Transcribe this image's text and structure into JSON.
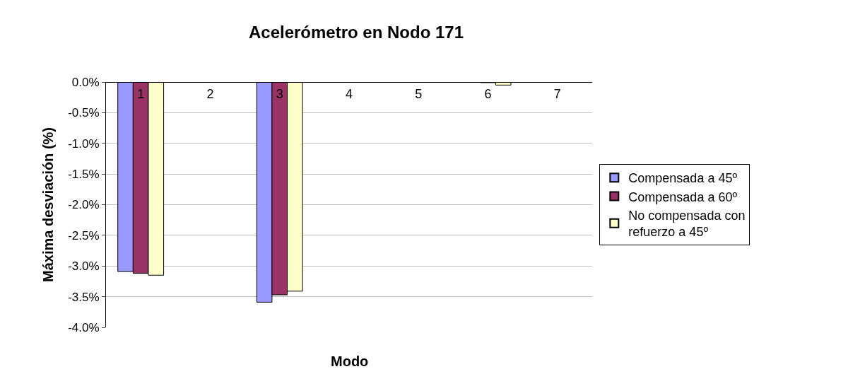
{
  "chart_data": {
    "type": "bar",
    "title": "Acelerómetro en Nodo 171",
    "xlabel": "Modo",
    "ylabel": "Máxima desviación (%)",
    "categories": [
      "1",
      "2",
      "3",
      "4",
      "5",
      "6",
      "7"
    ],
    "series": [
      {
        "name": "Compensada a 45º",
        "color": "#9999ff",
        "values": [
          -3.09,
          0,
          -3.59,
          0,
          0,
          0,
          0
        ]
      },
      {
        "name": "Compensada a 60º",
        "color": "#993366",
        "values": [
          -3.12,
          0,
          -3.47,
          0,
          0,
          -0.01,
          0
        ]
      },
      {
        "name": "No compensada con refuerzo a 45º",
        "color": "#ffffcc",
        "values": [
          -3.15,
          0,
          -3.41,
          0,
          0,
          -0.05,
          0
        ]
      }
    ],
    "ylim": [
      -4.0,
      0.0
    ],
    "yticks": [
      {
        "value": 0.0,
        "label": "0.0%"
      },
      {
        "value": -0.5,
        "label": "-0.5%"
      },
      {
        "value": -1.0,
        "label": "-1.0%"
      },
      {
        "value": -1.5,
        "label": "-1.5%"
      },
      {
        "value": -2.0,
        "label": "-2.0%"
      },
      {
        "value": -2.5,
        "label": "-2.5%"
      },
      {
        "value": -3.0,
        "label": "-3.0%"
      },
      {
        "value": -3.5,
        "label": "-3.5%"
      },
      {
        "value": -4.0,
        "label": "-4.0%"
      }
    ],
    "grid": "y",
    "legend": "right"
  }
}
